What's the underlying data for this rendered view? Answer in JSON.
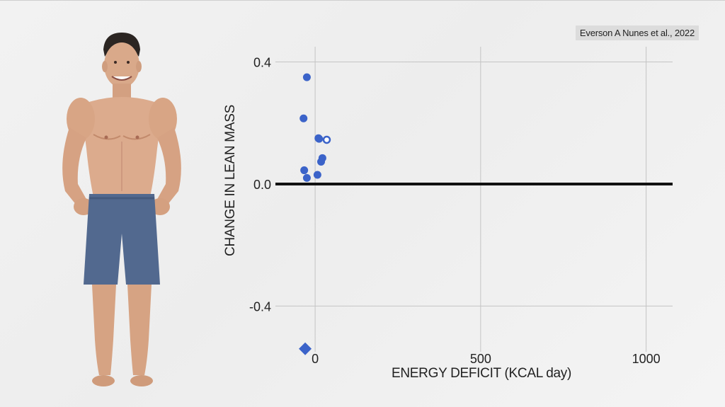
{
  "citation": "Everson A Nunes et al., 2022",
  "chart_data": {
    "type": "scatter",
    "xlabel": "ENERGY DEFICIT (KCAL day)",
    "ylabel": "CHANGE IN LEAN MASS",
    "xlim": [
      -120,
      1080
    ],
    "ylim": [
      -0.55,
      0.45
    ],
    "x_ticks": [
      0,
      500,
      1000
    ],
    "y_ticks": [
      0.4,
      0.0,
      -0.4
    ],
    "x_tick_labels": [
      "0",
      "500",
      "1000"
    ],
    "y_tick_labels": [
      "0.4",
      "0.0",
      "-0.4"
    ],
    "grid": true,
    "zero_line": true,
    "point_color": "#3b63c9",
    "points": [
      {
        "x": -25,
        "y": 0.35,
        "marker": "dot"
      },
      {
        "x": -35,
        "y": 0.215,
        "marker": "dot"
      },
      {
        "x": 10,
        "y": 0.15,
        "marker": "dot"
      },
      {
        "x": 12,
        "y": 0.148,
        "marker": "dot"
      },
      {
        "x": 35,
        "y": 0.145,
        "marker": "open-circle"
      },
      {
        "x": 22,
        "y": 0.085,
        "marker": "dot"
      },
      {
        "x": 18,
        "y": 0.073,
        "marker": "dot"
      },
      {
        "x": -33,
        "y": 0.045,
        "marker": "dot"
      },
      {
        "x": 7,
        "y": 0.03,
        "marker": "dot"
      },
      {
        "x": -25,
        "y": 0.02,
        "marker": "dot"
      },
      {
        "x": -30,
        "y": -0.54,
        "marker": "diamond"
      }
    ]
  }
}
